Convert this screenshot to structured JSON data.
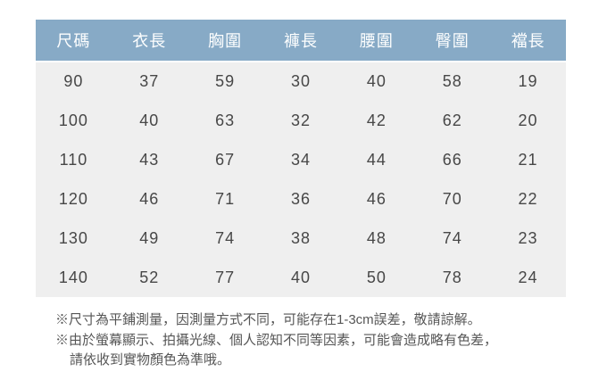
{
  "colors": {
    "header_bg": "#87aac6",
    "header_text": "#fdfefe",
    "body_bg": "#efefef",
    "cell_text": "#474747",
    "note_text": "#565656",
    "page_bg": "#ffffff"
  },
  "chart_data": {
    "type": "table",
    "columns": [
      "尺碼",
      "衣長",
      "胸圍",
      "褲長",
      "腰圍",
      "臀圍",
      "襠長"
    ],
    "rows": [
      [
        90,
        37,
        59,
        30,
        40,
        58,
        19
      ],
      [
        100,
        40,
        63,
        32,
        42,
        62,
        20
      ],
      [
        110,
        43,
        67,
        34,
        44,
        66,
        21
      ],
      [
        120,
        46,
        71,
        36,
        46,
        70,
        22
      ],
      [
        130,
        49,
        74,
        38,
        48,
        74,
        23
      ],
      [
        140,
        52,
        77,
        40,
        50,
        78,
        24
      ]
    ],
    "layout_hints": {
      "header_style": "blue band, white text",
      "body_style": "continuous light-gray block, no gridlines",
      "alignment": "center"
    }
  },
  "notes": [
    "※尺寸為平鋪測量，因測量方式不同，可能存在1-3cm誤差，敬請諒解。",
    "※由於螢幕顯示、拍攝光線、個人認知不同等因素，可能會造成略有色差，",
    "請依收到實物顏色為準哦。"
  ]
}
